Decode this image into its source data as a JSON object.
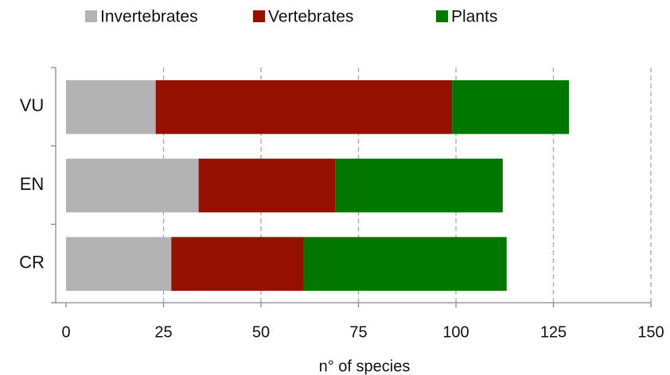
{
  "chart_data": {
    "type": "bar",
    "orientation": "horizontal",
    "stacked": true,
    "x_label": "n° of species",
    "categories": [
      "VU",
      "EN",
      "CR"
    ],
    "series": [
      {
        "name": "Invertebrates",
        "color": "#b3b3b3",
        "values": [
          23,
          34,
          27
        ]
      },
      {
        "name": "Vertebrates",
        "color": "#941100",
        "values": [
          76,
          35,
          34
        ]
      },
      {
        "name": "Plants",
        "color": "#007800",
        "values": [
          30,
          43,
          52
        ]
      }
    ],
    "xlim": [
      0,
      150
    ],
    "xticks": [
      0,
      25,
      50,
      75,
      100,
      125,
      150
    ],
    "grid": true,
    "legend": "top"
  }
}
